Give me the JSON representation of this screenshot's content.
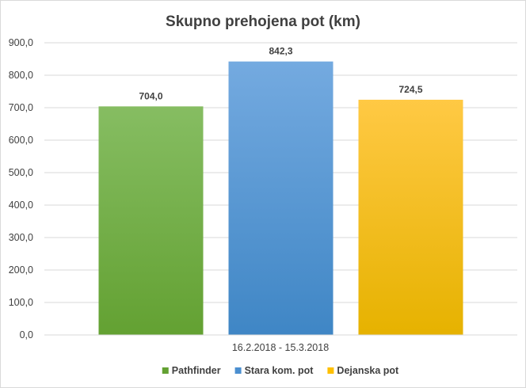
{
  "chart_data": {
    "type": "bar",
    "title": "Skupno prehojena pot (km)",
    "categories": [
      "16.2.2018 - 15.3.2018"
    ],
    "series": [
      {
        "name": "Pathfinder",
        "values": [
          704.0
        ],
        "label": "704,0",
        "color_top": "#86bd62",
        "color_bottom": "#63a132"
      },
      {
        "name": "Stara kom. pot",
        "values": [
          842.3
        ],
        "label": "842,3",
        "color_top": "#74aae0",
        "color_bottom": "#3f86c5"
      },
      {
        "name": "Dejanska pot",
        "values": [
          724.5
        ],
        "label": "724,5",
        "color_top": "#ffc944",
        "color_bottom": "#e6b200"
      }
    ],
    "ylim": [
      0,
      900
    ],
    "yticks": [
      {
        "value": 0,
        "label": "0,0"
      },
      {
        "value": 100,
        "label": "100,0"
      },
      {
        "value": 200,
        "label": "200,0"
      },
      {
        "value": 300,
        "label": "300,0"
      },
      {
        "value": 400,
        "label": "400,0"
      },
      {
        "value": 500,
        "label": "500,0"
      },
      {
        "value": 600,
        "label": "600,0"
      },
      {
        "value": 700,
        "label": "700,0"
      },
      {
        "value": 800,
        "label": "800,0"
      },
      {
        "value": 900,
        "label": "900,0"
      }
    ],
    "grid": true,
    "legend": "bottom",
    "legend_colors": [
      "#63a132",
      "#4b8fd0",
      "#ffc000"
    ],
    "gridline_color": "#d9d9d9",
    "text_color": "#404040"
  }
}
